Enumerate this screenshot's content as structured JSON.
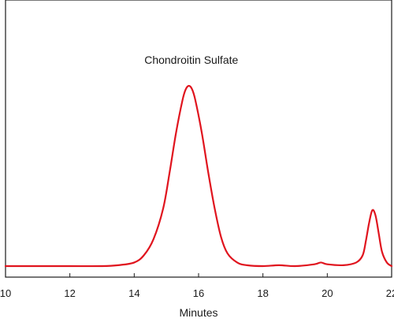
{
  "chart_data": {
    "type": "line",
    "title": "",
    "xlabel": "Minutes",
    "ylabel": "",
    "xlim": [
      10,
      22
    ],
    "ylim": [
      0,
      1.12
    ],
    "x_ticks": [
      10,
      12,
      14,
      16,
      18,
      20,
      22
    ],
    "x_tick_labels": [
      "10",
      "12",
      "14",
      "16",
      "18",
      "20",
      "22"
    ],
    "grid": false,
    "line_color": "#e0141e",
    "annotations": [
      {
        "text": "Chondroitin Sulfate",
        "x": 15.7,
        "y": 1.12
      }
    ],
    "series": [
      {
        "x": [
          10,
          11,
          12,
          13,
          13.5,
          14,
          14.3,
          14.6,
          14.9,
          15.1,
          15.3,
          15.5,
          15.6,
          15.7,
          15.8,
          15.9,
          16.1,
          16.3,
          16.5,
          16.7,
          16.9,
          17.2,
          17.5,
          18,
          18.5,
          19,
          19.6,
          19.8,
          20,
          20.5,
          20.9,
          21.1,
          21.2,
          21.3,
          21.4,
          21.5,
          21.6,
          21.7,
          21.85,
          22
        ],
        "y": [
          0,
          0,
          0,
          0,
          0.005,
          0.02,
          0.06,
          0.15,
          0.32,
          0.52,
          0.74,
          0.92,
          0.98,
          1.0,
          0.98,
          0.92,
          0.74,
          0.52,
          0.32,
          0.16,
          0.07,
          0.02,
          0.005,
          0,
          0.005,
          0,
          0.01,
          0.02,
          0.01,
          0.005,
          0.02,
          0.06,
          0.14,
          0.24,
          0.31,
          0.28,
          0.18,
          0.08,
          0.02,
          0
        ]
      }
    ]
  }
}
